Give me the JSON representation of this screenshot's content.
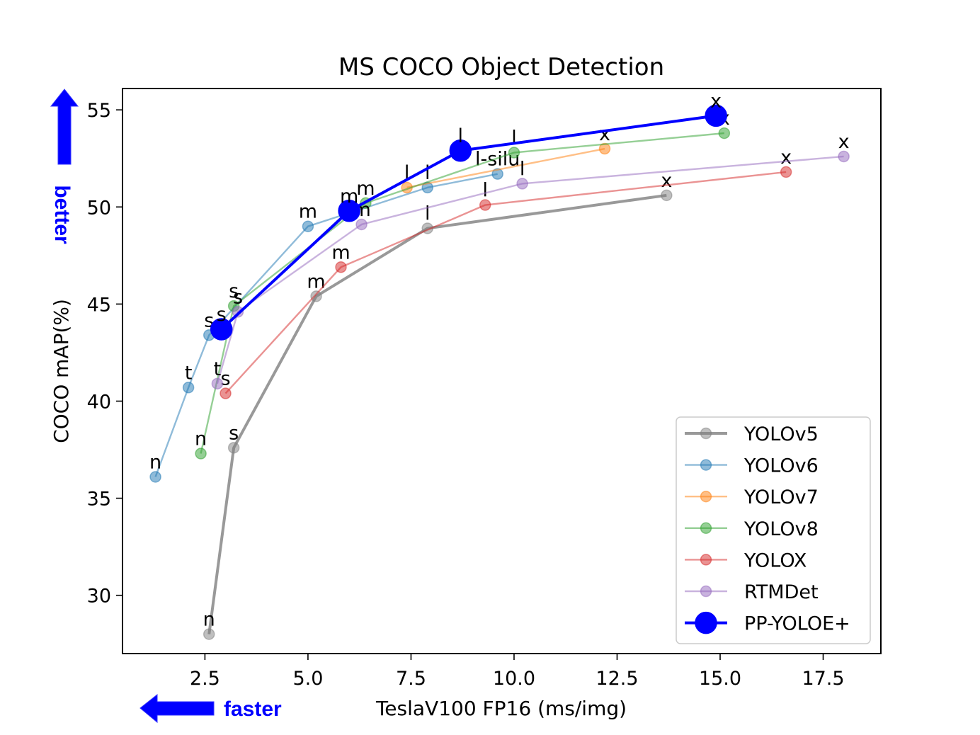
{
  "chart_data": {
    "type": "line",
    "title": "MS COCO Object Detection",
    "xlabel": "TeslaV100 FP16 (ms/img)",
    "ylabel": "COCO mAP(%)",
    "xlim": [
      0.5,
      18.9
    ],
    "ylim": [
      27.0,
      56.1
    ],
    "xticks": [
      2.5,
      5.0,
      7.5,
      10.0,
      12.5,
      15.0,
      17.5
    ],
    "xtick_labels": [
      "2.5",
      "5.0",
      "7.5",
      "10.0",
      "12.5",
      "15.0",
      "17.5"
    ],
    "yticks": [
      30,
      35,
      40,
      45,
      50,
      55
    ],
    "ytick_labels": [
      "30",
      "35",
      "40",
      "45",
      "50",
      "55"
    ],
    "grid": false,
    "legend_position": "lower-right",
    "series": [
      {
        "name": "YOLOv5",
        "color": "#808080",
        "points": [
          {
            "label": "n",
            "x": 2.6,
            "y": 28.0
          },
          {
            "label": "s",
            "x": 3.2,
            "y": 37.6
          },
          {
            "label": "m",
            "x": 5.2,
            "y": 45.4
          },
          {
            "label": "l",
            "x": 7.9,
            "y": 48.9
          },
          {
            "label": "x",
            "x": 13.7,
            "y": 50.6
          }
        ]
      },
      {
        "name": "YOLOv6",
        "color": "#1f77b4",
        "points": [
          {
            "label": "n",
            "x": 1.3,
            "y": 36.1
          },
          {
            "label": "t",
            "x": 2.1,
            "y": 40.7
          },
          {
            "label": "s",
            "x": 2.6,
            "y": 43.4
          },
          {
            "label": "m",
            "x": 5.0,
            "y": 49.0
          },
          {
            "label": "l",
            "x": 7.9,
            "y": 51.0
          },
          {
            "label": "l-silu",
            "x": 9.6,
            "y": 51.7
          }
        ]
      },
      {
        "name": "YOLOv7",
        "color": "#ff7f0e",
        "points": [
          {
            "label": "l",
            "x": 7.4,
            "y": 51.0
          },
          {
            "label": "x",
            "x": 12.2,
            "y": 53.0
          }
        ]
      },
      {
        "name": "YOLOv8",
        "color": "#2ca02c",
        "points": [
          {
            "label": "n",
            "x": 2.4,
            "y": 37.3
          },
          {
            "label": "s",
            "x": 3.2,
            "y": 44.9
          },
          {
            "label": "m",
            "x": 6.4,
            "y": 50.2
          },
          {
            "label": "l",
            "x": 10.0,
            "y": 52.8
          },
          {
            "label": "x",
            "x": 15.1,
            "y": 53.8
          }
        ]
      },
      {
        "name": "YOLOX",
        "color": "#d62728",
        "points": [
          {
            "label": "s",
            "x": 3.0,
            "y": 40.4
          },
          {
            "label": "m",
            "x": 5.8,
            "y": 46.9
          },
          {
            "label": "l",
            "x": 9.3,
            "y": 50.1
          },
          {
            "label": "x",
            "x": 16.6,
            "y": 51.8
          }
        ]
      },
      {
        "name": "RTMDet",
        "color": "#9467bd",
        "points": [
          {
            "label": "t",
            "x": 2.8,
            "y": 40.9
          },
          {
            "label": "s",
            "x": 3.3,
            "y": 44.6
          },
          {
            "label": "m",
            "x": 6.3,
            "y": 49.1
          },
          {
            "label": "l",
            "x": 10.2,
            "y": 51.2
          },
          {
            "label": "x",
            "x": 18.0,
            "y": 52.6
          }
        ]
      },
      {
        "name": "PP-YOLOE+",
        "color": "#0000ff",
        "points": [
          {
            "label": "s",
            "x": 2.9,
            "y": 43.7
          },
          {
            "label": "m",
            "x": 6.0,
            "y": 49.8
          },
          {
            "label": "l",
            "x": 8.7,
            "y": 52.9
          },
          {
            "label": "x",
            "x": 14.9,
            "y": 54.7
          }
        ]
      }
    ]
  },
  "annotations": {
    "better": "better",
    "faster": "faster",
    "arrow_color": "#0000ff"
  }
}
